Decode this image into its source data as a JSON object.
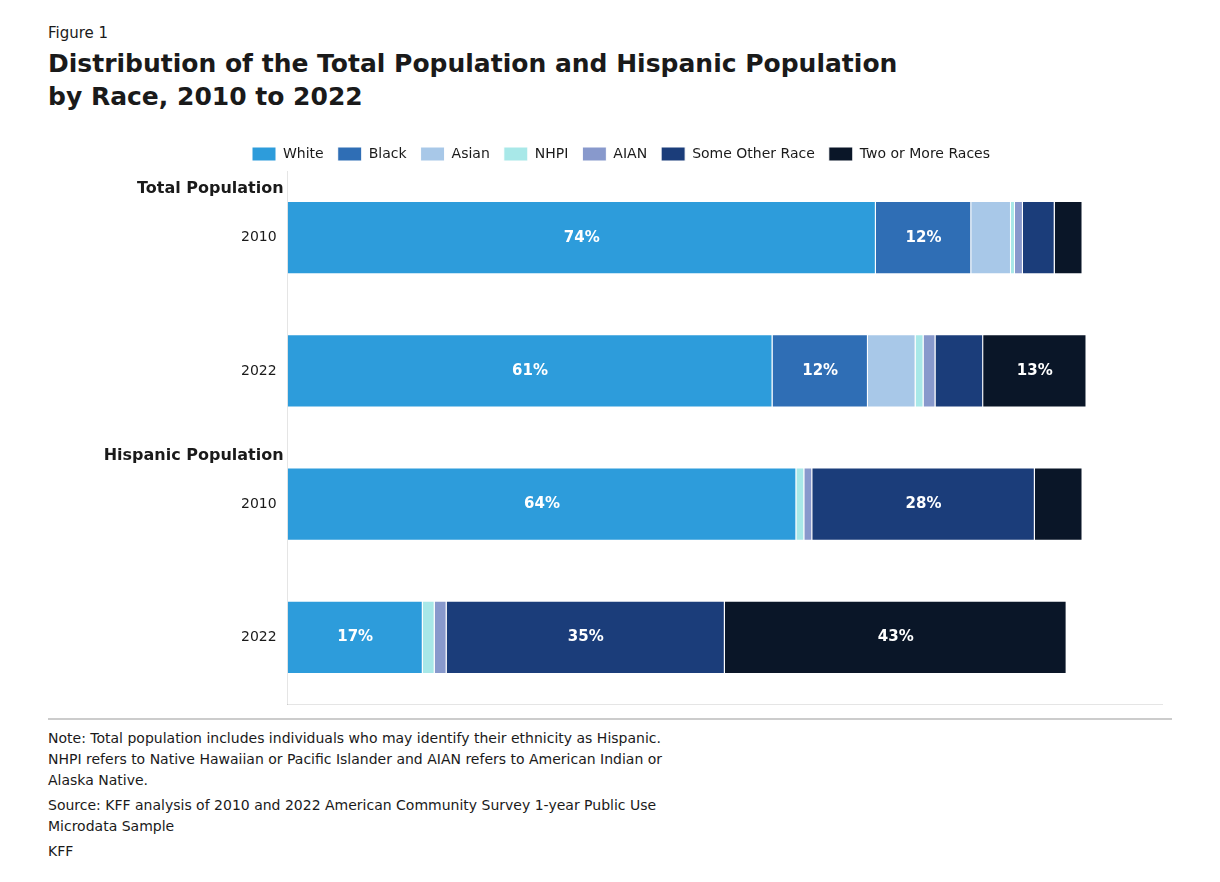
{
  "chart_data": {
    "type": "bar",
    "orientation": "horizontal",
    "stacked": true,
    "subtitle": "Figure 1",
    "title": [
      "Distribution of the Total Population and Hispanic Population",
      "by Race, 2010 to 2022"
    ],
    "categories": [
      "2010",
      "2022",
      "2010",
      "2022"
    ],
    "series": [
      {
        "name": "White",
        "color": "#2D9CDB",
        "values": [
          74,
          61,
          64,
          17
        ],
        "value_labels": [
          "74%",
          "61%",
          "64%",
          "17%"
        ]
      },
      {
        "name": "Black",
        "color": "#2F6EB5",
        "values": [
          12,
          12,
          0,
          0
        ],
        "value_labels": [
          "12%",
          "12%",
          null,
          null
        ]
      },
      {
        "name": "Asian",
        "color": "#A8C8E8",
        "values": [
          5,
          6,
          0,
          0
        ],
        "value_labels": [
          null,
          null,
          null,
          null
        ]
      },
      {
        "name": "NHPI",
        "color": "#A8E8E8",
        "values": [
          0.5,
          1,
          1,
          1.5
        ],
        "value_labels": [
          null,
          null,
          null,
          null
        ]
      },
      {
        "name": "AIAN",
        "color": "#8899CC",
        "values": [
          1,
          1.5,
          1,
          1.5
        ],
        "value_labels": [
          null,
          null,
          null,
          null
        ]
      },
      {
        "name": "Some Other Race",
        "color": "#1B3D7A",
        "values": [
          4,
          6,
          28,
          35
        ],
        "value_labels": [
          null,
          null,
          "28%",
          "35%"
        ]
      },
      {
        "name": "Two or More Races",
        "color": "#0A1628",
        "values": [
          3.5,
          13,
          6,
          43
        ],
        "value_labels": [
          null,
          "13%",
          null,
          "43%"
        ]
      }
    ],
    "xlim": [
      0,
      110
    ],
    "xticks": [
      0,
      10,
      20,
      30,
      40,
      50,
      60,
      70,
      80,
      90,
      100,
      110
    ],
    "tick_labels": "y",
    "grid": false,
    "legend": "top",
    "data_labels": true,
    "annotations": [
      {
        "text": "Total Population",
        "category": 0
      },
      {
        "text": "Hispanic Population",
        "category": 2
      },
      {
        "text": "Note: Total population includes individuals who may identify their ethnicity as Hispanic.\nNHPI refers to Native Hawaiian or Pacific Islander and AIAN refers to American Indian or\nAlaska Native."
      },
      {
        "text": "Source: KFF analysis of 2010 and 2022 American Community Survey 1-year Public Use\nMicrodata Sample"
      },
      {
        "text": "KFF"
      }
    ]
  }
}
